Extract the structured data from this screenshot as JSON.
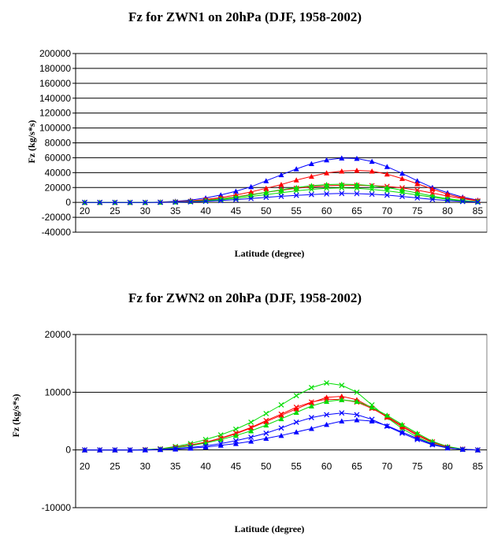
{
  "chart_data": [
    {
      "type": "line",
      "title": "Fz for ZWN1 on 20hPa (DJF, 1958-2002)",
      "xlabel": "Latitude (degree)",
      "ylabel": "Fz (kg/s*s)",
      "ylim": [
        -40000,
        200000
      ],
      "yticks": [
        -40000,
        -20000,
        0,
        20000,
        40000,
        60000,
        80000,
        100000,
        120000,
        140000,
        160000,
        180000,
        200000
      ],
      "xticks": [
        20,
        25,
        30,
        35,
        40,
        45,
        50,
        55,
        60,
        65,
        70,
        75,
        80,
        85
      ],
      "grid": true,
      "x": [
        20,
        22.5,
        25,
        27.5,
        30,
        32.5,
        35,
        37.5,
        40,
        42.5,
        45,
        47.5,
        50,
        52.5,
        55,
        57.5,
        60,
        62.5,
        65,
        67.5,
        70,
        72.5,
        75,
        77.5,
        80,
        82.5,
        85
      ],
      "series": [
        {
          "color": "#0000ff",
          "marker": "triangle",
          "values": [
            0,
            0,
            0,
            0,
            0,
            500,
            1500,
            3000,
            6000,
            10000,
            15000,
            21000,
            29000,
            37000,
            45000,
            52000,
            57000,
            59500,
            59000,
            55000,
            48000,
            39000,
            29000,
            20000,
            13000,
            7000,
            3000
          ]
        },
        {
          "color": "#ff0000",
          "marker": "triangle",
          "values": [
            0,
            0,
            0,
            0,
            0,
            300,
            1000,
            2000,
            4000,
            6500,
            10000,
            14000,
            19000,
            24000,
            30000,
            35000,
            39500,
            42000,
            43000,
            42000,
            38000,
            32000,
            25000,
            18000,
            11000,
            6000,
            2500
          ]
        },
        {
          "color": "#ff0000",
          "marker": "x",
          "values": [
            0,
            0,
            0,
            0,
            0,
            200,
            700,
            1500,
            3000,
            5000,
            7500,
            10500,
            13500,
            16500,
            19000,
            21000,
            22500,
            23000,
            23000,
            22500,
            21500,
            19500,
            16500,
            12500,
            8500,
            5000,
            2000
          ]
        },
        {
          "color": "#00dd00",
          "marker": "triangle",
          "values": [
            0,
            0,
            0,
            0,
            0,
            200,
            600,
            1200,
            2500,
            4500,
            7000,
            10000,
            13500,
            17000,
            20000,
            22500,
            24000,
            24500,
            24000,
            22500,
            20000,
            16500,
            12500,
            8500,
            5000,
            2500,
            1000
          ]
        },
        {
          "color": "#00dd00",
          "marker": "x",
          "values": [
            0,
            0,
            0,
            0,
            0,
            150,
            500,
            1000,
            2000,
            3500,
            5500,
            8000,
            10500,
            13000,
            15500,
            17500,
            19000,
            19500,
            19000,
            17500,
            15500,
            13000,
            10000,
            7000,
            4000,
            2000,
            800
          ]
        },
        {
          "color": "#0000ff",
          "marker": "x",
          "values": [
            0,
            0,
            0,
            0,
            0,
            100,
            300,
            700,
            1500,
            2500,
            3800,
            5200,
            6800,
            8200,
            9500,
            10500,
            11500,
            12000,
            11800,
            11000,
            9800,
            8000,
            6000,
            4000,
            2500,
            1200,
            400
          ]
        }
      ]
    },
    {
      "type": "line",
      "title": "Fz for ZWN2 on 20hPa (DJF, 1958-2002)",
      "xlabel": "Latitude (degree)",
      "ylabel": "Fz (kg/s*s)",
      "ylim": [
        -10000,
        20000
      ],
      "yticks": [
        -10000,
        0,
        10000,
        20000
      ],
      "xticks": [
        20,
        25,
        30,
        35,
        40,
        45,
        50,
        55,
        60,
        65,
        70,
        75,
        80,
        85
      ],
      "grid": true,
      "x": [
        20,
        22.5,
        25,
        27.5,
        30,
        32.5,
        35,
        37.5,
        40,
        42.5,
        45,
        47.5,
        50,
        52.5,
        55,
        57.5,
        60,
        62.5,
        65,
        67.5,
        70,
        72.5,
        75,
        77.5,
        80,
        82.5,
        85
      ],
      "series": [
        {
          "color": "#00dd00",
          "marker": "x",
          "values": [
            0,
            0,
            0,
            0,
            50,
            200,
            600,
            1100,
            1800,
            2600,
            3600,
            4800,
            6300,
            7800,
            9400,
            10800,
            11600,
            11200,
            10000,
            7800,
            5600,
            3700,
            2200,
            1100,
            400,
            100,
            0
          ]
        },
        {
          "color": "#ff0000",
          "marker": "triangle",
          "values": [
            0,
            0,
            0,
            0,
            50,
            150,
            450,
            850,
            1300,
            2000,
            2800,
            3800,
            4900,
            6000,
            7100,
            8200,
            9100,
            9300,
            8700,
            7300,
            5700,
            4000,
            2500,
            1300,
            500,
            150,
            0
          ]
        },
        {
          "color": "#ff0000",
          "marker": "x",
          "values": [
            0,
            0,
            0,
            0,
            50,
            150,
            450,
            850,
            1350,
            2050,
            2900,
            3900,
            5100,
            6200,
            7400,
            8300,
            8800,
            8700,
            8300,
            7200,
            5800,
            4200,
            2700,
            1400,
            500,
            150,
            0
          ]
        },
        {
          "color": "#00dd00",
          "marker": "triangle",
          "values": [
            0,
            0,
            0,
            0,
            50,
            150,
            400,
            750,
            1200,
            1800,
            2500,
            3300,
            4300,
            5400,
            6500,
            7600,
            8400,
            8700,
            8400,
            7400,
            6000,
            4400,
            2900,
            1500,
            600,
            150,
            0
          ]
        },
        {
          "color": "#0000ff",
          "marker": "x",
          "values": [
            0,
            0,
            0,
            0,
            0,
            100,
            250,
            450,
            700,
            1100,
            1600,
            2200,
            2900,
            3800,
            4800,
            5600,
            6100,
            6400,
            6100,
            5300,
            4100,
            2900,
            1800,
            900,
            350,
            100,
            0
          ]
        },
        {
          "color": "#0000ff",
          "marker": "triangle",
          "values": [
            0,
            0,
            0,
            0,
            0,
            50,
            150,
            300,
            500,
            800,
            1100,
            1500,
            2000,
            2500,
            3100,
            3700,
            4400,
            5000,
            5200,
            5000,
            4200,
            3100,
            2000,
            1000,
            350,
            100,
            0
          ]
        }
      ]
    }
  ]
}
